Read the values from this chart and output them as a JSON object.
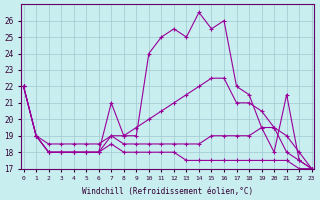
{
  "xlabel": "Windchill (Refroidissement éolien,°C)",
  "background_color": "#c8eef0",
  "grid_color": "#a0c8d0",
  "line_color": "#990099",
  "x_hours": [
    0,
    1,
    2,
    3,
    4,
    5,
    6,
    7,
    8,
    9,
    10,
    11,
    12,
    13,
    14,
    15,
    16,
    17,
    18,
    19,
    20,
    21,
    22,
    23
  ],
  "series": [
    [
      22,
      19,
      18,
      18,
      18,
      18,
      18,
      21,
      19,
      19,
      24,
      25,
      25.5,
      25,
      26.5,
      25.5,
      26,
      22,
      21.5,
      19.5,
      18,
      21.5,
      17.5,
      17
    ],
    [
      22,
      19,
      18,
      18,
      18,
      18,
      18,
      19,
      19,
      19.5,
      20,
      20.5,
      21,
      21.5,
      22,
      22.5,
      22.5,
      21,
      21,
      20.5,
      19.5,
      19,
      18,
      17
    ],
    [
      22,
      19,
      18.5,
      18.5,
      18.5,
      18.5,
      18.5,
      19,
      18.5,
      18.5,
      18.5,
      18.5,
      18.5,
      18.5,
      18.5,
      19,
      19,
      19,
      19,
      19.5,
      19.5,
      18,
      17.5,
      17
    ],
    [
      22,
      19,
      18,
      18,
      18,
      18,
      18,
      18.5,
      18,
      18,
      18,
      18,
      18,
      17.5,
      17.5,
      17.5,
      17.5,
      17.5,
      17.5,
      17.5,
      17.5,
      17.5,
      17,
      17
    ]
  ],
  "ylim": [
    17,
    27
  ],
  "yticks": [
    17,
    18,
    19,
    20,
    21,
    22,
    23,
    24,
    25,
    26
  ],
  "xlim": [
    0,
    23
  ]
}
